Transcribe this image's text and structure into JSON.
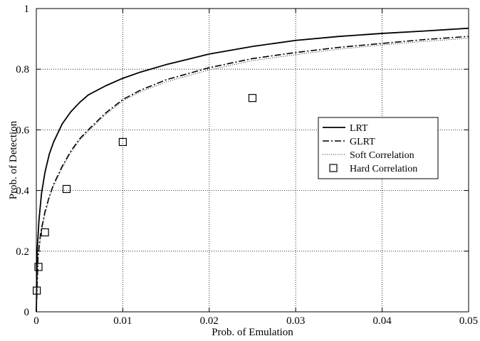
{
  "chart_data": {
    "type": "line",
    "xlabel": "Prob. of Emulation",
    "ylabel": "Prob. of Detection",
    "xlim": [
      0,
      0.05
    ],
    "ylim": [
      0,
      1
    ],
    "grid": true,
    "legend_position": "center-right",
    "xticks": [
      0,
      0.01,
      0.02,
      0.03,
      0.04,
      0.05
    ],
    "xtick_labels": [
      "0",
      "0.01",
      "0.02",
      "0.03",
      "0.04",
      "0.05"
    ],
    "yticks": [
      0,
      0.2,
      0.4,
      0.6,
      0.8,
      1
    ],
    "ytick_labels": [
      "0",
      "0.2",
      "0.4",
      "0.6",
      "0.8",
      "1"
    ],
    "series": [
      {
        "name": "LRT",
        "style": "solid",
        "color": "#000000",
        "x": [
          0,
          0.0001,
          0.0003,
          0.0006,
          0.001,
          0.0015,
          0.002,
          0.003,
          0.004,
          0.005,
          0.006,
          0.008,
          0.01,
          0.012,
          0.015,
          0.02,
          0.025,
          0.03,
          0.035,
          0.04,
          0.045,
          0.05
        ],
        "y": [
          0,
          0.2,
          0.3,
          0.39,
          0.46,
          0.52,
          0.56,
          0.62,
          0.66,
          0.69,
          0.715,
          0.745,
          0.77,
          0.79,
          0.815,
          0.85,
          0.875,
          0.895,
          0.908,
          0.918,
          0.926,
          0.935
        ]
      },
      {
        "name": "GLRT",
        "style": "dashdot",
        "color": "#000000",
        "x": [
          0,
          0.0002,
          0.0005,
          0.001,
          0.0015,
          0.002,
          0.003,
          0.004,
          0.005,
          0.006,
          0.008,
          0.01,
          0.012,
          0.015,
          0.02,
          0.025,
          0.03,
          0.035,
          0.04,
          0.045,
          0.05
        ],
        "y": [
          0,
          0.18,
          0.26,
          0.33,
          0.38,
          0.42,
          0.48,
          0.53,
          0.57,
          0.6,
          0.655,
          0.7,
          0.73,
          0.765,
          0.805,
          0.835,
          0.855,
          0.872,
          0.885,
          0.898,
          0.908
        ]
      },
      {
        "name": "Soft Correlation",
        "style": "dotted",
        "color": "#444444",
        "x": [
          0,
          0.0002,
          0.0005,
          0.001,
          0.0015,
          0.002,
          0.003,
          0.004,
          0.005,
          0.006,
          0.008,
          0.01,
          0.012,
          0.015,
          0.02,
          0.025,
          0.03,
          0.035,
          0.04,
          0.045,
          0.05
        ],
        "y": [
          0,
          0.17,
          0.25,
          0.32,
          0.375,
          0.415,
          0.475,
          0.525,
          0.565,
          0.595,
          0.65,
          0.695,
          0.725,
          0.758,
          0.798,
          0.828,
          0.848,
          0.866,
          0.88,
          0.892,
          0.902
        ]
      },
      {
        "name": "Hard Correlation",
        "style": "markers",
        "marker": "square",
        "color": "#000000",
        "x": [
          5e-05,
          0.00025,
          0.001,
          0.0035,
          0.01,
          0.025
        ],
        "y": [
          0.07,
          0.148,
          0.262,
          0.405,
          0.56,
          0.705
        ]
      }
    ]
  }
}
